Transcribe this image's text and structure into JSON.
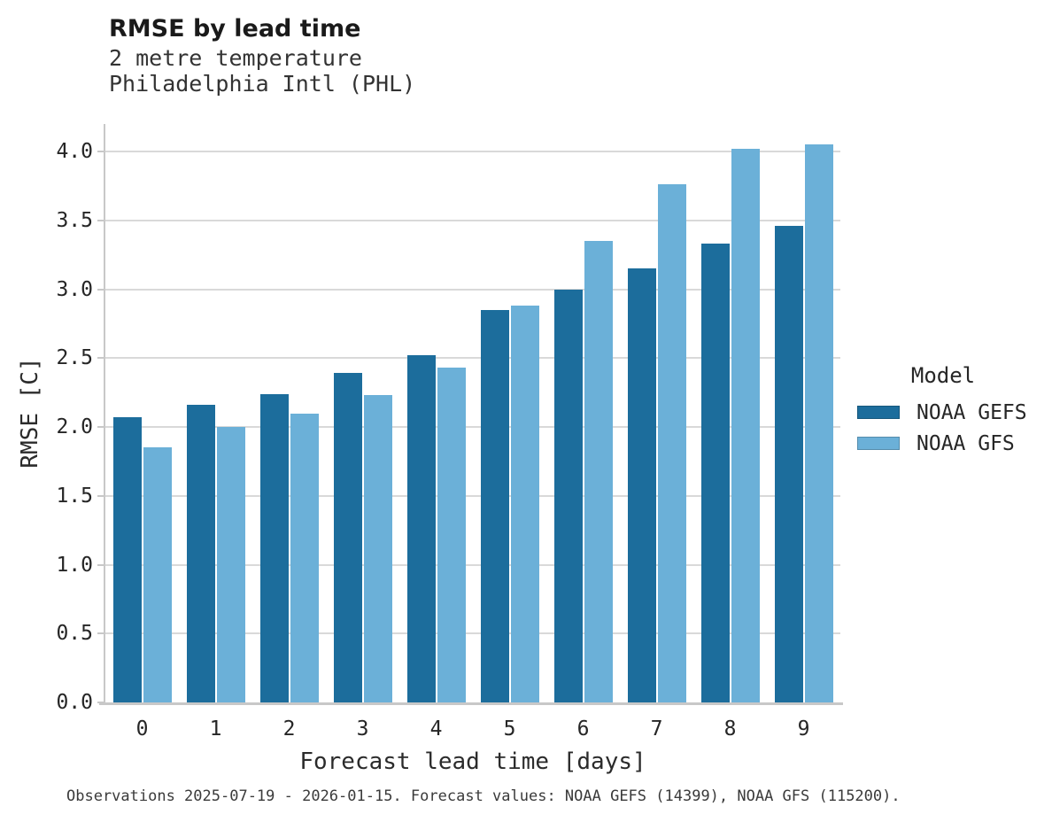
{
  "header": {
    "title": "RMSE by lead time",
    "subtitle_line1": "2 metre temperature",
    "subtitle_line2": "Philadelphia Intl (PHL)"
  },
  "chart_data": {
    "type": "bar",
    "title": "RMSE by lead time",
    "subtitle": [
      "2 metre temperature",
      "Philadelphia Intl (PHL)"
    ],
    "categories": [
      "0",
      "1",
      "2",
      "3",
      "4",
      "5",
      "6",
      "7",
      "8",
      "9"
    ],
    "series": [
      {
        "name": "NOAA GEFS",
        "color": "#1c6d9c",
        "values": [
          2.07,
          2.16,
          2.24,
          2.39,
          2.52,
          2.85,
          3.0,
          3.15,
          3.33,
          3.46
        ]
      },
      {
        "name": "NOAA GFS",
        "color": "#6bb0d8",
        "values": [
          1.85,
          2.0,
          2.1,
          2.23,
          2.43,
          2.88,
          3.35,
          3.76,
          4.02,
          4.05
        ]
      }
    ],
    "xlabel": "Forecast lead time [days]",
    "ylabel": "RMSE [C]",
    "ylim": [
      0,
      4.2
    ],
    "ytick_step": 0.5,
    "ytick_max": 4.0,
    "grid": "horizontal",
    "legend_position": "right",
    "grid_color": "#d9d9d9",
    "spine_color": "#c8c8c8"
  },
  "legend": {
    "title": "Model",
    "items": [
      {
        "label": "NOAA GEFS",
        "color": "#1c6d9c"
      },
      {
        "label": "NOAA GFS",
        "color": "#6bb0d8"
      }
    ]
  },
  "caption": "Observations 2025-07-19 - 2026-01-15. Forecast values: NOAA GEFS (14399), NOAA GFS (115200)."
}
